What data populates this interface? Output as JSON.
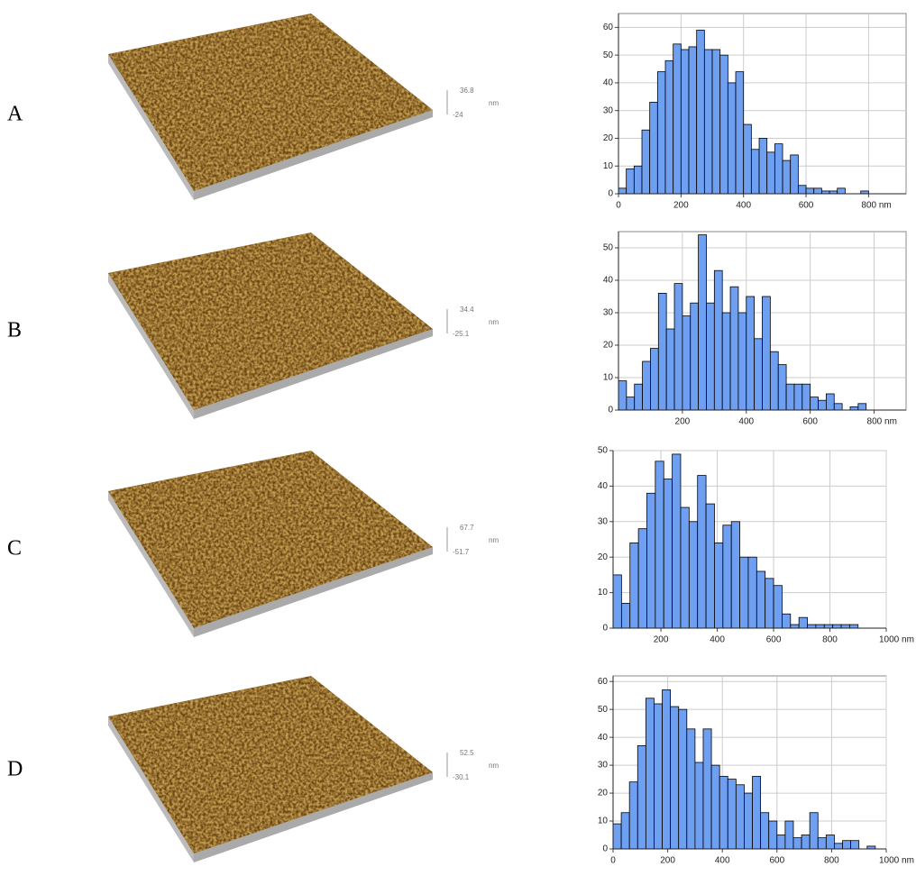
{
  "chart_data": [
    {
      "type": "histogram",
      "panel_label": "A",
      "afm_scale": {
        "max": "36.8",
        "min": "-24",
        "unit": "nm"
      },
      "color": "#6f9ff0",
      "grid": true,
      "bins": [
        0,
        25,
        50,
        75,
        100,
        125,
        150,
        175,
        200,
        225,
        250,
        275,
        300,
        325,
        350,
        375,
        400,
        425,
        450,
        475,
        500,
        525,
        550,
        575,
        600,
        625,
        650,
        675,
        700,
        725,
        750,
        775,
        800
      ],
      "values": [
        2,
        9,
        10,
        23,
        33,
        44,
        48,
        54,
        52,
        53,
        59,
        52,
        52,
        50,
        40,
        44,
        25,
        16,
        20,
        15,
        18,
        12,
        14,
        3,
        2,
        2,
        1,
        1,
        2,
        0,
        0,
        1
      ],
      "xlim": [
        0,
        920
      ],
      "xticks": [
        0,
        200,
        400,
        600,
        {
          "value": 800,
          "label": "800 nm"
        }
      ],
      "ylim": [
        0,
        65
      ],
      "yticks": [
        0,
        10,
        20,
        30,
        40,
        50,
        60
      ]
    },
    {
      "type": "histogram",
      "panel_label": "B",
      "afm_scale": {
        "max": "34.4",
        "min": "-25.1",
        "unit": "nm"
      },
      "color": "#6f9ff0",
      "grid": true,
      "bins": [
        0,
        25,
        50,
        75,
        100,
        125,
        150,
        175,
        200,
        225,
        250,
        275,
        300,
        325,
        350,
        375,
        400,
        425,
        450,
        475,
        500,
        525,
        550,
        575,
        600,
        625,
        650,
        675,
        700,
        725,
        750,
        775
      ],
      "values": [
        9,
        4,
        8,
        15,
        19,
        36,
        25,
        39,
        29,
        33,
        54,
        33,
        43,
        30,
        38,
        30,
        35,
        22,
        35,
        18,
        14,
        8,
        8,
        8,
        4,
        3,
        5,
        2,
        0,
        1,
        2
      ],
      "xlim": [
        0,
        900
      ],
      "xticks": [
        200,
        400,
        600,
        {
          "value": 800,
          "label": "800 nm"
        }
      ],
      "ylim": [
        0,
        55
      ],
      "yticks": [
        0,
        10,
        20,
        30,
        40,
        50
      ]
    },
    {
      "type": "histogram",
      "panel_label": "C",
      "afm_scale": {
        "max": "67.7",
        "min": "-51.7",
        "unit": "nm"
      },
      "color": "#6f9ff0",
      "grid": true,
      "bins": [
        30,
        60,
        90,
        120,
        150,
        180,
        210,
        240,
        270,
        300,
        330,
        360,
        390,
        420,
        450,
        480,
        510,
        540,
        570,
        600,
        630,
        660,
        690,
        720,
        750,
        780,
        810,
        840,
        870,
        900
      ],
      "values": [
        15,
        7,
        24,
        28,
        38,
        47,
        42,
        49,
        34,
        30,
        43,
        35,
        24,
        29,
        30,
        20,
        20,
        16,
        14,
        12,
        4,
        1,
        3,
        1,
        1,
        1,
        1,
        1,
        1
      ],
      "xlim": [
        30,
        1000
      ],
      "xticks": [
        200,
        400,
        600,
        800,
        {
          "value": 1000,
          "label": "1000 nm"
        }
      ],
      "ylim": [
        0,
        50
      ],
      "yticks": [
        0,
        10,
        20,
        30,
        40,
        50
      ]
    },
    {
      "type": "histogram",
      "panel_label": "D",
      "afm_scale": {
        "max": "52.5",
        "min": "-30.1",
        "unit": "nm"
      },
      "color": "#6f9ff0",
      "grid": true,
      "bins": [
        0,
        30,
        60,
        90,
        120,
        150,
        180,
        210,
        240,
        270,
        300,
        330,
        360,
        390,
        420,
        450,
        480,
        510,
        540,
        570,
        600,
        630,
        660,
        690,
        720,
        750,
        780,
        810,
        840,
        870,
        900,
        930,
        960
      ],
      "values": [
        9,
        13,
        24,
        37,
        54,
        52,
        57,
        51,
        50,
        43,
        31,
        43,
        30,
        26,
        25,
        23,
        20,
        26,
        13,
        10,
        5,
        10,
        4,
        5,
        13,
        4,
        5,
        2,
        3,
        3,
        0,
        1
      ],
      "xlim": [
        0,
        1000
      ],
      "xticks": [
        0,
        200,
        400,
        600,
        800,
        {
          "value": 1000,
          "label": "1000 nm"
        }
      ],
      "ylim": [
        0,
        62
      ],
      "yticks": [
        0,
        10,
        20,
        30,
        40,
        50,
        60
      ]
    }
  ]
}
